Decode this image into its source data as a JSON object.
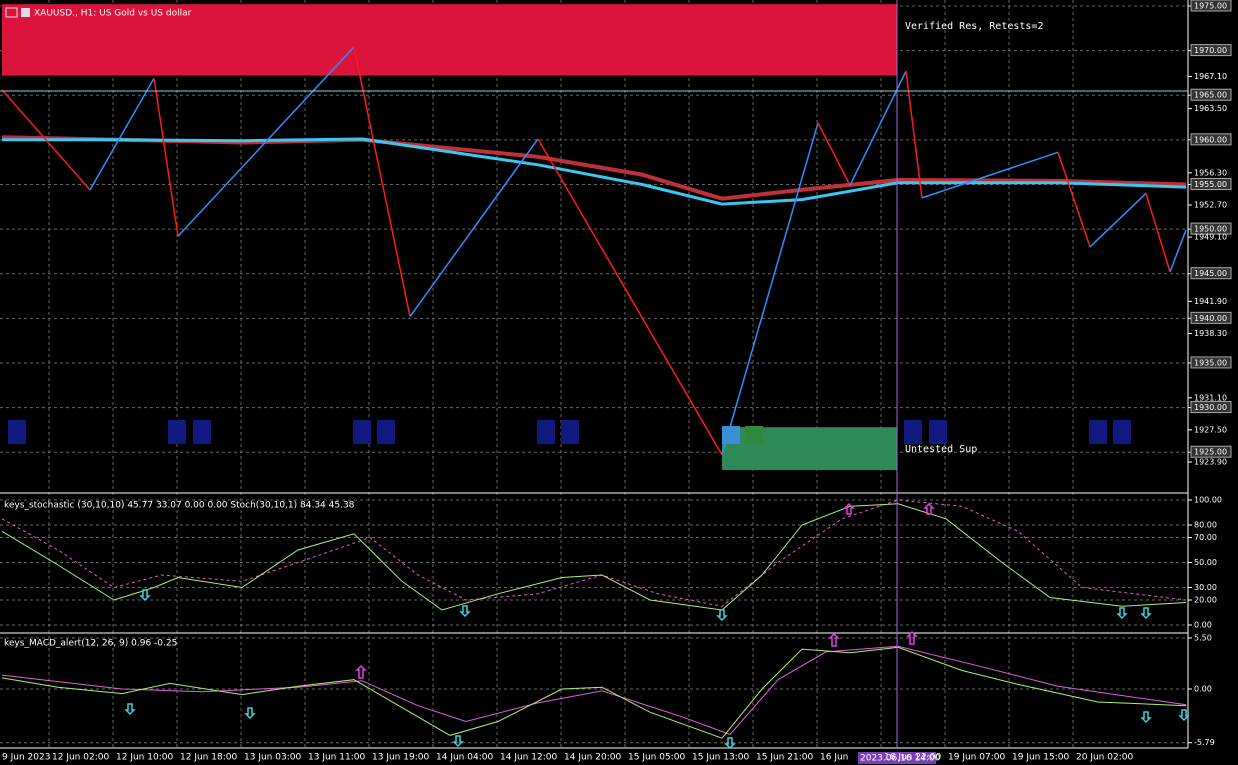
{
  "header": {
    "title": "XAUUSD., H1: US Gold vs US dollar"
  },
  "annotations": {
    "resistance_label": "Verified Res, Retests=2",
    "support_label": "Untested Sup",
    "cursor_label": "2023.06.16 14:00"
  },
  "main": {
    "xlim": [
      0,
      148
    ],
    "ylim": [
      1920.54,
      1975.67
    ],
    "ticks": [
      {
        "value": 1975,
        "label": "1975.00"
      },
      {
        "value": 1970,
        "label": "1970.00"
      },
      {
        "value": 1967.1,
        "label": "1967.10"
      },
      {
        "value": 1965,
        "label": "1965.00"
      },
      {
        "value": 1963.5,
        "label": "1963.50"
      },
      {
        "value": 1960,
        "label": "1960.00"
      },
      {
        "value": 1956.3,
        "label": "1956.30"
      },
      {
        "value": 1955,
        "label": "1955.00"
      },
      {
        "value": 1952.7,
        "label": "1952.70"
      },
      {
        "value": 1950,
        "label": "1950.00"
      },
      {
        "value": 1949.1,
        "label": "1949.10"
      },
      {
        "value": 1945,
        "label": "1945.00"
      },
      {
        "value": 1941.9,
        "label": "1941.90"
      },
      {
        "value": 1940,
        "label": "1940.00"
      },
      {
        "value": 1938.3,
        "label": "1938.30"
      },
      {
        "value": 1935,
        "label": "1935.00"
      },
      {
        "value": 1931.1,
        "label": "1931.10"
      },
      {
        "value": 1930,
        "label": "1930.00"
      },
      {
        "value": 1927.5,
        "label": "1927.50"
      },
      {
        "value": 1925,
        "label": "1925.00"
      },
      {
        "value": 1923.9,
        "label": "1923.90"
      }
    ],
    "zones": {
      "resistance": [
        1975.2,
        1967.2
      ],
      "support": [
        1927.8,
        1923.0
      ]
    },
    "zigzag": {
      "x": [
        0,
        11,
        19,
        22,
        44,
        51,
        67,
        90,
        102,
        106,
        113,
        115,
        132,
        136,
        143,
        146,
        148
      ],
      "values": [
        1965.6,
        1954.4,
        1966.9,
        1949.2,
        1970.4,
        1940.2,
        1960.1,
        1924.7,
        1961.9,
        1954.9,
        1967.7,
        1953.5,
        1958.6,
        1948.0,
        1954.0,
        1945.2,
        1949.9
      ]
    },
    "ma_red": {
      "x": [
        0,
        15,
        30,
        45,
        67,
        80,
        90,
        100,
        112,
        132,
        148
      ],
      "values": [
        1960.3,
        1960.0,
        1959.7,
        1960.0,
        1958.1,
        1956.1,
        1953.4,
        1954.4,
        1955.5,
        1955.4,
        1955.0
      ]
    },
    "ma_blue": {
      "x": [
        0,
        15,
        30,
        45,
        67,
        80,
        90,
        100,
        112,
        132,
        148
      ],
      "values": [
        1960.0,
        1960.0,
        1959.9,
        1960.1,
        1957.2,
        1955.0,
        1952.8,
        1953.3,
        1955.2,
        1955.2,
        1954.7
      ]
    }
  },
  "time_axis": {
    "labels": [
      "9 Jun 2023",
      "12 Jun 02:00",
      "12 Jun 10:00",
      "12 Jun 18:00",
      "13 Jun 03:00",
      "13 Jun 11:00",
      "13 Jun 19:00",
      "14 Jun 04:00",
      "14 Jun 12:00",
      "14 Jun 20:00",
      "15 Jun 05:00",
      "15 Jun 13:00",
      "15 Jun 21:00",
      "16 Jun",
      "16 Jun 22:00",
      "19 Jun 07:00",
      "19 Jun 15:00",
      "20 Jun 02:00"
    ]
  },
  "stochastic": {
    "label": "keys_stochastic (30,10,10) 45.77 33.07 0.00 0.00 Stoch(30,10,1) 84.34 45.38",
    "ylim": [
      -5.6,
      104.8
    ],
    "ticks": [
      {
        "value": 100,
        "label": "100.00"
      },
      {
        "value": 80,
        "label": "80.00"
      },
      {
        "value": 70,
        "label": "70.00"
      },
      {
        "value": 50,
        "label": "50.00"
      },
      {
        "value": 30,
        "label": "30.00"
      },
      {
        "value": 20,
        "label": "20.00"
      },
      {
        "value": 0,
        "label": "0.00"
      }
    ],
    "main": {
      "x": [
        0,
        7,
        14,
        19,
        22,
        30,
        37,
        44,
        50,
        55,
        62,
        70,
        75,
        81,
        90,
        95,
        100,
        106,
        112,
        118,
        125,
        131,
        140,
        148
      ],
      "values": [
        75,
        48,
        20,
        30,
        38,
        30,
        60,
        73,
        35,
        12,
        25,
        38,
        40,
        20,
        12,
        40,
        80,
        95,
        97,
        85,
        50,
        22,
        15,
        18
      ]
    },
    "signal": {
      "x": [
        0,
        7,
        14,
        20,
        30,
        37,
        46,
        52,
        58,
        67,
        75,
        82,
        90,
        97,
        105,
        112,
        120,
        127,
        135,
        148
      ],
      "values": [
        85,
        60,
        30,
        40,
        35,
        50,
        70,
        40,
        20,
        25,
        40,
        25,
        15,
        50,
        85,
        100,
        95,
        75,
        30,
        20
      ]
    }
  },
  "macd": {
    "label": "keys_MACD_alert(12, 26, 9) 0.96 -0.25",
    "ylim": [
      -6.36,
      5.93
    ],
    "ticks": [
      {
        "value": 5.5,
        "label": "5.50"
      },
      {
        "value": 0,
        "label": "0.00"
      },
      {
        "value": -5.79,
        "label": "-5.79"
      }
    ],
    "main": {
      "x": [
        0,
        7,
        15,
        21,
        30,
        37,
        44,
        50,
        56,
        62,
        70,
        75,
        81,
        90,
        95,
        100,
        106,
        112,
        120,
        127,
        137,
        148
      ],
      "values": [
        1.2,
        0.2,
        -0.5,
        0.6,
        -0.6,
        0.3,
        1.0,
        -2,
        -5.0,
        -3.5,
        0.0,
        0.2,
        -2.5,
        -5.3,
        0.0,
        4.3,
        3.9,
        4.5,
        2.0,
        0.5,
        -1.4,
        -1.8
      ]
    },
    "signal": {
      "x": [
        0,
        7,
        15,
        25,
        37,
        45,
        52,
        58,
        67,
        75,
        85,
        91,
        97,
        103,
        112,
        122,
        132,
        148
      ],
      "values": [
        1.5,
        0.8,
        0.0,
        -0.3,
        0.2,
        0.9,
        -1.8,
        -3.5,
        -1.5,
        -0.2,
        -3.0,
        -4.9,
        1.0,
        4.0,
        4.6,
        2.5,
        0.3,
        -1.7
      ]
    }
  }
}
